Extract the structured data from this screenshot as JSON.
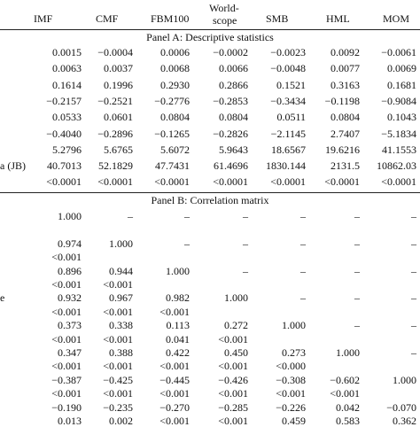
{
  "columns": {
    "imf": "IMF",
    "cmf": "CMF",
    "fbm100": "FBM100",
    "worldscope_line1": "World-",
    "worldscope_line2": "scope",
    "smb": "SMB",
    "hml": "HML",
    "mom": "MOM"
  },
  "panel_a": {
    "title": "Panel A: Descriptive statistics",
    "row_labels": [
      "a (JB)"
    ],
    "rows": [
      [
        "0.0015",
        "−0.0004",
        "0.0006",
        "−0.0002",
        "−0.0023",
        "0.0092",
        "−0.0061"
      ],
      [
        "0.0063",
        "0.0037",
        "0.0068",
        "0.0066",
        "−0.0048",
        "0.0077",
        "0.0069"
      ],
      [
        "0.1614",
        "0.1996",
        "0.2930",
        "0.2866",
        "0.1521",
        "0.3163",
        "0.1681"
      ],
      [
        "−0.2157",
        "−0.2521",
        "−0.2776",
        "−0.2853",
        "−0.3434",
        "−0.1198",
        "−0.9084"
      ],
      [
        "0.0533",
        "0.0601",
        "0.0804",
        "0.0804",
        "0.0511",
        "0.0804",
        "0.1043"
      ],
      [
        "−0.4040",
        "−0.2896",
        "−0.1265",
        "−0.2826",
        "−2.1145",
        "2.7407",
        "−5.1834"
      ],
      [
        "5.2796",
        "5.6765",
        "5.6072",
        "5.9643",
        "18.6567",
        "19.6216",
        "41.1553"
      ],
      [
        "40.7013",
        "52.1829",
        "47.7431",
        "61.4696",
        "1830.144",
        "2131.5",
        "10862.03"
      ],
      [
        "<0.0001",
        "<0.0001",
        "<0.0001",
        "<0.0001",
        "<0.0001",
        "<0.0001",
        "<0.0001"
      ]
    ]
  },
  "panel_b": {
    "title": "Panel B: Correlation matrix",
    "row_labels": [
      "e"
    ],
    "rows": [
      [
        "1.000",
        "–",
        "–",
        "–",
        "–",
        "–",
        "–"
      ],
      [
        "",
        "",
        "",
        "",
        "",
        "",
        ""
      ],
      [
        "0.974",
        "1.000",
        "–",
        "–",
        "–",
        "–",
        "–"
      ],
      [
        "<0.001",
        "",
        "",
        "",
        "",
        "",
        ""
      ],
      [
        "0.896",
        "0.944",
        "1.000",
        "–",
        "–",
        "–",
        "–"
      ],
      [
        "<0.001",
        "<0.001",
        "",
        "",
        "",
        "",
        ""
      ],
      [
        "0.932",
        "0.967",
        "0.982",
        "1.000",
        "–",
        "–",
        "–"
      ],
      [
        "<0.001",
        "<0.001",
        "<0.001",
        "",
        "",
        "",
        ""
      ],
      [
        "0.373",
        "0.338",
        "0.113",
        "0.272",
        "1.000",
        "–",
        "–"
      ],
      [
        "<0.001",
        "<0.001",
        "0.041",
        "<0.001",
        "",
        "",
        ""
      ],
      [
        "0.347",
        "0.388",
        "0.422",
        "0.450",
        "0.273",
        "1.000",
        "–"
      ],
      [
        "<0.001",
        "<0.001",
        "<0.001",
        "<0.001",
        "<0.000",
        "",
        ""
      ],
      [
        "−0.387",
        "−0.425",
        "−0.445",
        "−0.426",
        "−0.308",
        "−0.602",
        "1.000"
      ],
      [
        "<0.001",
        "<0.001",
        "<0.001",
        "<0.001",
        "<0.001",
        "<0.001",
        ""
      ],
      [
        "−0.190",
        "−0.235",
        "−0.270",
        "−0.285",
        "−0.226",
        "0.042",
        "−0.070"
      ],
      [
        "0.013",
        "0.002",
        "<0.001",
        "<0.001",
        "0.459",
        "0.583",
        "0.362"
      ]
    ]
  }
}
